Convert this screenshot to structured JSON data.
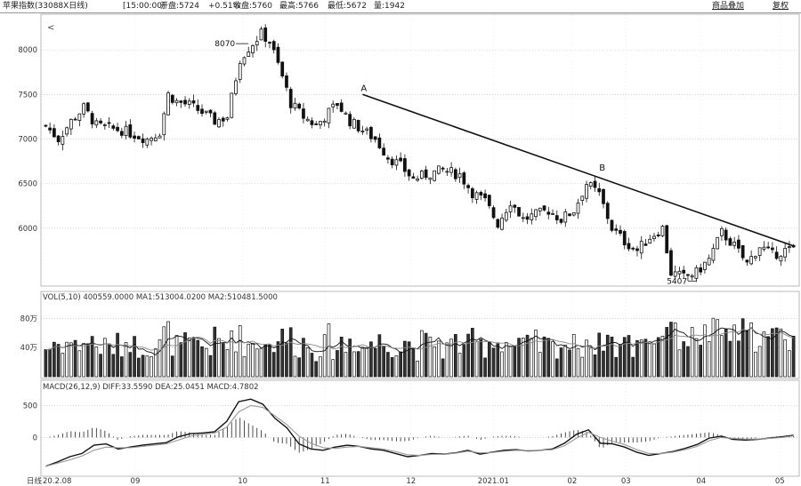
{
  "header": {
    "title": "苹果指数(33088X日线)",
    "time": "[15:00:00]",
    "open": "开盘:5724",
    "change": "+0.51%",
    "close": "收盘:5760",
    "high": "最高:5766",
    "low": "最低:5672",
    "volume": "量:1942",
    "overlay_button": "商品叠加",
    "reset_button": "复权"
  },
  "panels": {
    "volume_label": "VOL(5,10) 400559.0000 MA1:513004.0200 MA2:510481.5000",
    "macd_label": "MACD(26,12,9) DIFF:33.5590 DEA:25.0451 MACD:4.7802"
  },
  "annotations": {
    "high_price": "8070",
    "low_price": "5407",
    "point_a": "A",
    "point_b": "B",
    "back_arrow": "<"
  },
  "chart_data": [
    {
      "type": "candlestick",
      "panel": "price",
      "y_ticks": [
        "8000",
        "7500",
        "7000",
        "6500",
        "6000"
      ],
      "ylim": [
        5350,
        8400
      ],
      "x_ticks": [
        "20.2.08",
        "09",
        "10",
        "11",
        "12",
        "2021.01",
        "02",
        "03",
        "04",
        "05"
      ],
      "close_path": [
        {
          "t": 0,
          "v": 7150
        },
        {
          "t": 3,
          "v": 7000
        },
        {
          "t": 6,
          "v": 7200
        },
        {
          "t": 9,
          "v": 7350
        },
        {
          "t": 12,
          "v": 7150
        },
        {
          "t": 15,
          "v": 7120
        },
        {
          "t": 18,
          "v": 7100
        },
        {
          "t": 21,
          "v": 7050
        },
        {
          "t": 24,
          "v": 7000
        },
        {
          "t": 27,
          "v": 7080
        },
        {
          "t": 29,
          "v": 7500
        },
        {
          "t": 31,
          "v": 7420
        },
        {
          "t": 34,
          "v": 7380
        },
        {
          "t": 37,
          "v": 7300
        },
        {
          "t": 40,
          "v": 7200
        },
        {
          "t": 43,
          "v": 7250
        },
        {
          "t": 46,
          "v": 7900
        },
        {
          "t": 48,
          "v": 8020
        },
        {
          "t": 51,
          "v": 8180
        },
        {
          "t": 53,
          "v": 8100
        },
        {
          "t": 56,
          "v": 7700
        },
        {
          "t": 58,
          "v": 7400
        },
        {
          "t": 61,
          "v": 7250
        },
        {
          "t": 64,
          "v": 7150
        },
        {
          "t": 67,
          "v": 7300
        },
        {
          "t": 69,
          "v": 7400
        },
        {
          "t": 72,
          "v": 7200
        },
        {
          "t": 75,
          "v": 7100
        },
        {
          "t": 78,
          "v": 7000
        },
        {
          "t": 81,
          "v": 6800
        },
        {
          "t": 84,
          "v": 6700
        },
        {
          "t": 87,
          "v": 6550
        },
        {
          "t": 90,
          "v": 6600
        },
        {
          "t": 94,
          "v": 6650
        },
        {
          "t": 98,
          "v": 6600
        },
        {
          "t": 101,
          "v": 6400
        },
        {
          "t": 104,
          "v": 6300
        },
        {
          "t": 107,
          "v": 6050
        },
        {
          "t": 110,
          "v": 6300
        },
        {
          "t": 113,
          "v": 6100
        },
        {
          "t": 116,
          "v": 6150
        },
        {
          "t": 119,
          "v": 6200
        },
        {
          "t": 122,
          "v": 6100
        },
        {
          "t": 125,
          "v": 6200
        },
        {
          "t": 128,
          "v": 6500
        },
        {
          "t": 131,
          "v": 6380
        },
        {
          "t": 134,
          "v": 6000
        },
        {
          "t": 137,
          "v": 5850
        },
        {
          "t": 140,
          "v": 5750
        },
        {
          "t": 143,
          "v": 5900
        },
        {
          "t": 146,
          "v": 6000
        },
        {
          "t": 148,
          "v": 5500
        },
        {
          "t": 151,
          "v": 5450
        },
        {
          "t": 154,
          "v": 5500
        },
        {
          "t": 157,
          "v": 5650
        },
        {
          "t": 160,
          "v": 5950
        },
        {
          "t": 163,
          "v": 5800
        },
        {
          "t": 166,
          "v": 5600
        },
        {
          "t": 169,
          "v": 5800
        },
        {
          "t": 172,
          "v": 5700
        },
        {
          "t": 175,
          "v": 5750
        },
        {
          "t": 177,
          "v": 5760
        }
      ],
      "high_label_value": 8070,
      "low_label_value": 5407,
      "trendline": {
        "from": {
          "label": "A",
          "value": 7500
        },
        "to": {
          "value": 5800
        },
        "through": "B"
      }
    },
    {
      "type": "bar",
      "panel": "volume",
      "y_ticks": [
        "80万",
        "40万"
      ],
      "ylim": [
        0,
        1000000
      ],
      "series": [
        {
          "name": "MA1"
        },
        {
          "name": "MA2"
        }
      ]
    },
    {
      "type": "line",
      "panel": "macd",
      "y_ticks": [
        "500",
        "0"
      ],
      "ylim": [
        -550,
        700
      ],
      "series": [
        {
          "name": "DIFF",
          "values": [
            -450,
            -380,
            -300,
            -250,
            -120,
            -100,
            -180,
            -150,
            -120,
            -100,
            -80,
            10,
            60,
            70,
            90,
            250,
            560,
            600,
            520,
            300,
            150,
            -100,
            -180,
            -200,
            -150,
            -120,
            -140,
            -180,
            -200,
            -250,
            -300,
            -280,
            -250,
            -260,
            -240,
            -200,
            -260,
            -230,
            -200,
            -190,
            -210,
            -200,
            -180,
            -90,
            50,
            120,
            -90,
            -100,
            -150,
            -230,
            -280,
            -250,
            -220,
            -170,
            -110,
            -10,
            20,
            -30,
            -40,
            -30,
            -10,
            10,
            35
          ]
        },
        {
          "name": "DEA",
          "values": [
            -450,
            -400,
            -350,
            -290,
            -200,
            -150,
            -160,
            -160,
            -140,
            -120,
            -100,
            -40,
            20,
            50,
            70,
            160,
            400,
            500,
            470,
            340,
            200,
            20,
            -90,
            -160,
            -170,
            -150,
            -140,
            -160,
            -180,
            -220,
            -270,
            -280,
            -265,
            -260,
            -245,
            -215,
            -240,
            -235,
            -215,
            -200,
            -205,
            -200,
            -190,
            -130,
            -10,
            80,
            0,
            -60,
            -110,
            -190,
            -250,
            -250,
            -230,
            -190,
            -140,
            -50,
            0,
            -15,
            -25,
            -25,
            -15,
            0,
            25
          ]
        }
      ]
    }
  ]
}
